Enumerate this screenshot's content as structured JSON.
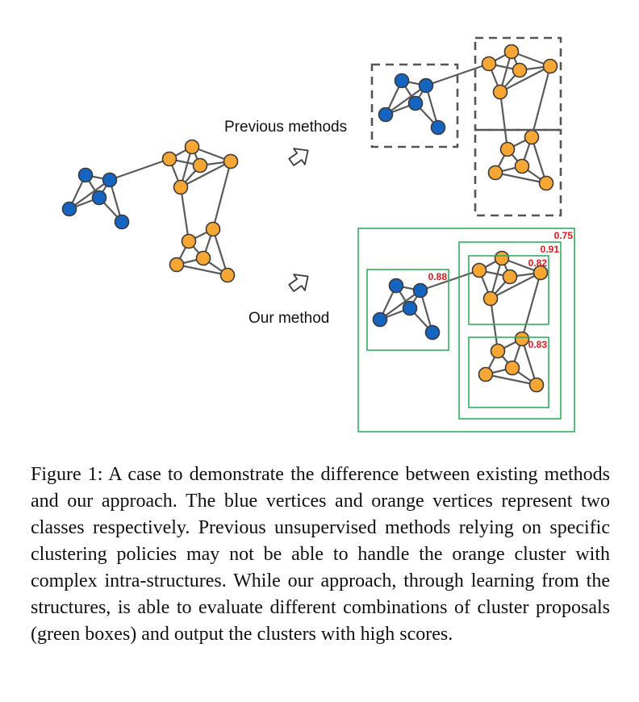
{
  "labels": {
    "previous": "Previous methods",
    "ours": "Our method"
  },
  "scores": {
    "outer": "0.75",
    "orange_union": "0.91",
    "orange_top": "0.82",
    "blue": "0.88",
    "orange_bottom": "0.83"
  },
  "colors": {
    "blue_vertex": "#1565c0",
    "orange_vertex": "#f5a634",
    "proposal_box": "#2db05c",
    "score_text": "#e8151c"
  },
  "caption": {
    "label": "Figure 1:",
    "text": "A case to demonstrate the difference between existing methods and our approach. The blue vertices and orange vertices represent two classes respectively. Previous unsupervised methods relying on specific clustering policies may not be able to handle the orange cluster with complex intra-structures. While our approach, through learning from the structures, is able to evaluate different combinations of cluster proposals (green boxes) and output the clusters with high scores."
  }
}
